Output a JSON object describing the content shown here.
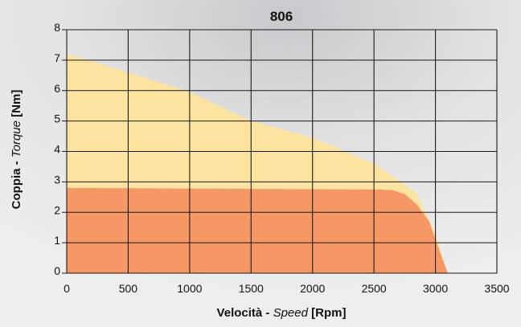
{
  "chart_data": {
    "type": "area",
    "title": "806",
    "xlabel": {
      "prefix": "Velocità - ",
      "italic": "Speed",
      "suffix": " [Rpm]"
    },
    "ylabel": {
      "prefix": "Coppia - ",
      "italic": "Torque",
      "suffix": " [Nm]"
    },
    "xlim": [
      0,
      3500
    ],
    "ylim": [
      0,
      8
    ],
    "x_ticks": [
      "0",
      "500",
      "1000",
      "1500",
      "2000",
      "2500",
      "3000",
      "3500"
    ],
    "y_ticks": [
      "0",
      "1",
      "2",
      "3",
      "4",
      "5",
      "6",
      "7",
      "8"
    ],
    "grid": true,
    "series": [
      {
        "role": "peak",
        "color": "#fde3a0",
        "x": [
          0,
          500,
          1000,
          1500,
          2000,
          2500,
          2700,
          2850,
          3000,
          3100
        ],
        "y": [
          7.2,
          6.6,
          5.95,
          5.0,
          4.45,
          3.6,
          3.05,
          2.6,
          1.3,
          0
        ]
      },
      {
        "role": "continuous",
        "color": "#f59866",
        "x": [
          0,
          500,
          1000,
          1500,
          2000,
          2500,
          2650,
          2750,
          2850,
          2950,
          3000,
          3100
        ],
        "y": [
          2.8,
          2.79,
          2.78,
          2.77,
          2.76,
          2.75,
          2.73,
          2.6,
          2.25,
          1.7,
          1.1,
          0
        ]
      }
    ]
  }
}
